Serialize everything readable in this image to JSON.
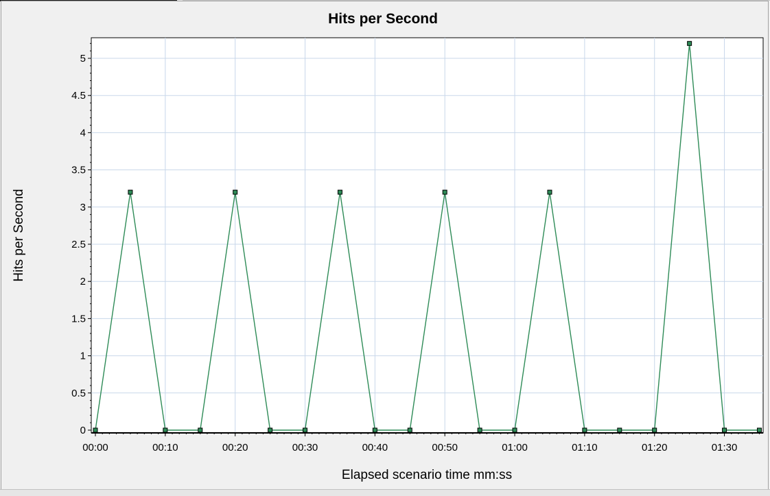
{
  "chart_data": {
    "type": "line",
    "title": "Hits per Second",
    "xlabel": "Elapsed scenario time mm:ss",
    "ylabel": "Hits per Second",
    "x_ticks": [
      "00:00",
      "00:10",
      "00:20",
      "00:30",
      "00:40",
      "00:50",
      "01:00",
      "01:10",
      "01:20",
      "01:30"
    ],
    "y_ticks": [
      "0",
      "0.5",
      "1",
      "1.5",
      "2",
      "2.5",
      "3",
      "3.5",
      "4",
      "4.5",
      "5"
    ],
    "xlim": [
      0,
      95
    ],
    "ylim": [
      0,
      5.25
    ],
    "grid": true,
    "line_color": "#2e8b57",
    "marker_fill": "#2e8b57",
    "marker_stroke": "#000000",
    "grid_color": "#c8d7ea",
    "series": [
      {
        "x": [
          0,
          5,
          10,
          15,
          20,
          25,
          30,
          35,
          40,
          45,
          50,
          55,
          60,
          65,
          70,
          75,
          80,
          85,
          90,
          95
        ],
        "values": [
          0,
          3.2,
          0,
          0,
          3.2,
          0,
          0,
          3.2,
          0,
          0,
          3.2,
          0,
          0,
          3.2,
          0,
          0,
          0,
          5.2,
          0,
          0
        ]
      }
    ]
  }
}
